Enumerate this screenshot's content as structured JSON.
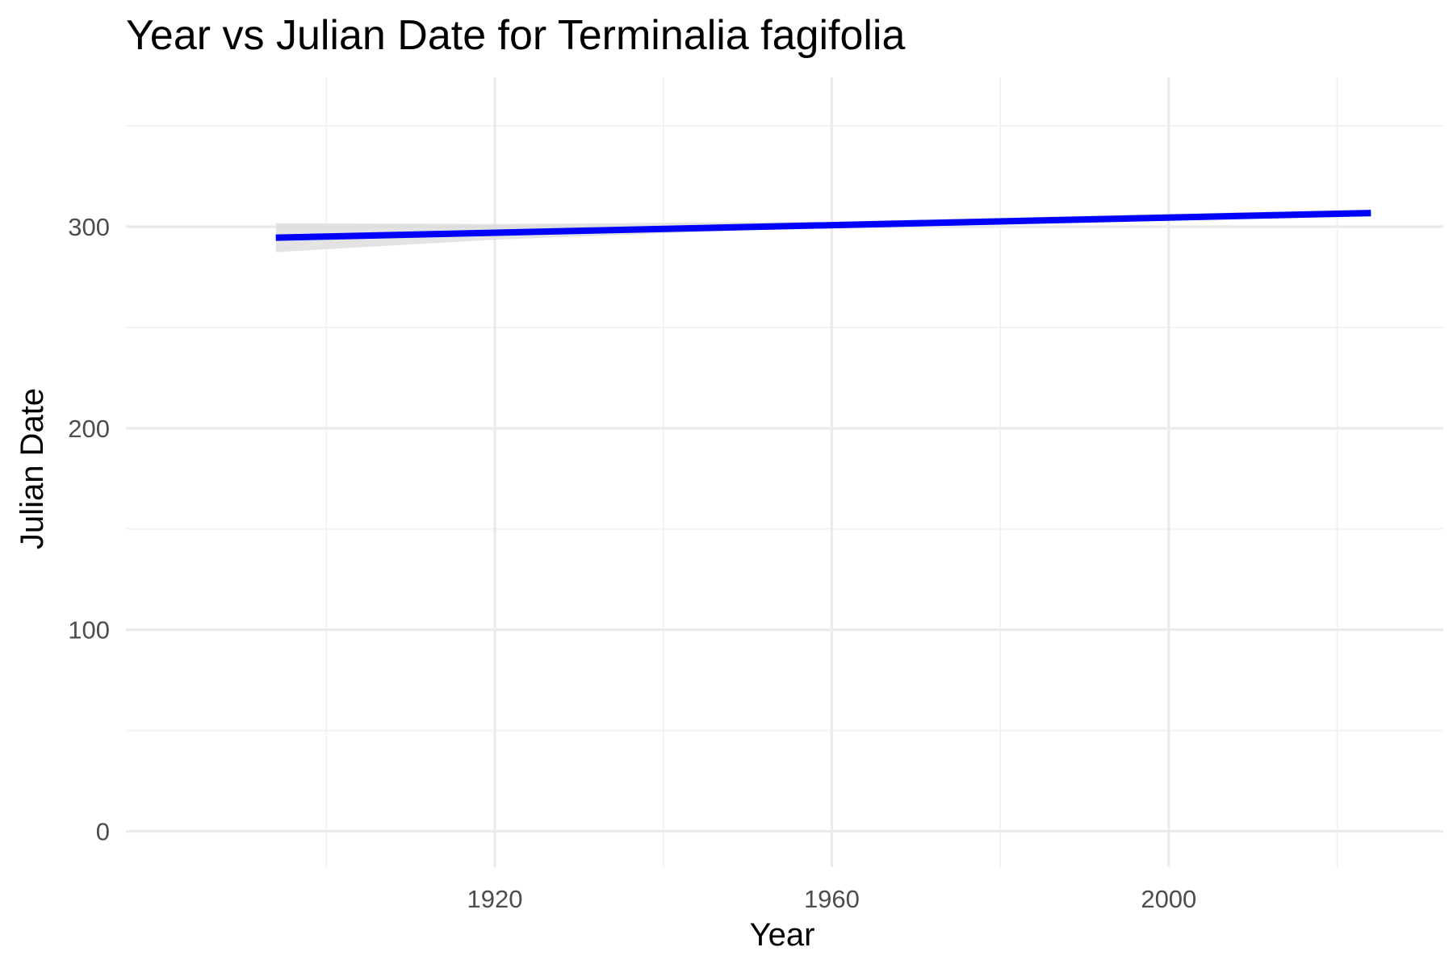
{
  "chart_data": {
    "type": "line",
    "title": "Year vs Julian Date for Terminalia fagifolia",
    "xlabel": "Year",
    "ylabel": "Julian Date",
    "xlim": [
      1876.2,
      2032.6
    ],
    "ylim": [
      -17.8,
      374.1
    ],
    "x_ticks": [
      1920,
      1960,
      2000
    ],
    "x_tick_labels": [
      "1920",
      "1960",
      "2000"
    ],
    "x_minor_ticks": [
      1900,
      1940,
      1980,
      2020
    ],
    "y_ticks": [
      0,
      100,
      200,
      300
    ],
    "y_tick_labels": [
      "0",
      "100",
      "200",
      "300"
    ],
    "y_minor_ticks": [
      50,
      150,
      250,
      350
    ],
    "grid": true,
    "legend": "none",
    "series": [
      {
        "color": "#0000ff",
        "x": [
          1894,
          2024
        ],
        "y": [
          294.6,
          306.8
        ]
      }
    ],
    "confidence_band": {
      "color": "#d9d9d9",
      "x": [
        1894,
        1920,
        1960,
        2000,
        2024
      ],
      "lower": [
        287.4,
        293.6,
        299.9,
        303.2,
        305.0
      ],
      "upper": [
        301.8,
        301.4,
        302.5,
        306.4,
        308.6
      ]
    }
  }
}
